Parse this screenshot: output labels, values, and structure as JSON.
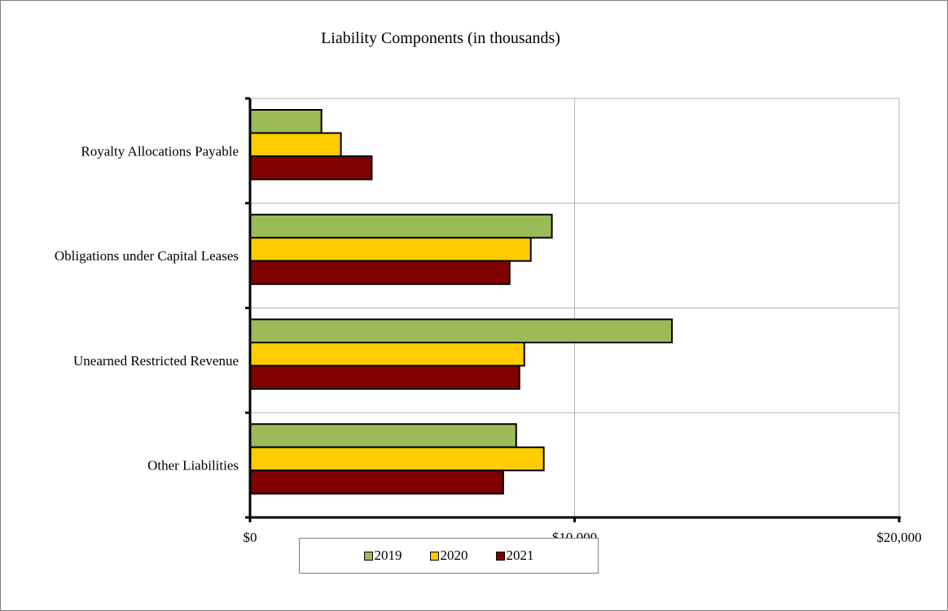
{
  "chart_data": {
    "type": "bar",
    "orientation": "horizontal",
    "title": "Liability Components (in thousands)",
    "xlabel": "",
    "ylabel": "",
    "categories": [
      "Royalty Allocations Payable",
      "Obligations under Capital Leases",
      "Unearned Restricted Revenue",
      "Other Liabilities"
    ],
    "series": [
      {
        "name": "2019",
        "color": "#9BBB59",
        "values": [
          2200,
          9300,
          13000,
          8200
        ]
      },
      {
        "name": "2020",
        "color": "#FFCC00",
        "values": [
          2800,
          8650,
          8450,
          9050
        ]
      },
      {
        "name": "2021",
        "color": "#800000",
        "values": [
          3750,
          8000,
          8300,
          7800
        ]
      }
    ],
    "xlim": [
      0,
      20000
    ],
    "x_ticks": [
      0,
      10000,
      20000
    ],
    "x_tick_labels": [
      "$0",
      "$10,000",
      "$20,000"
    ],
    "grid": true,
    "legend_position": "bottom"
  }
}
